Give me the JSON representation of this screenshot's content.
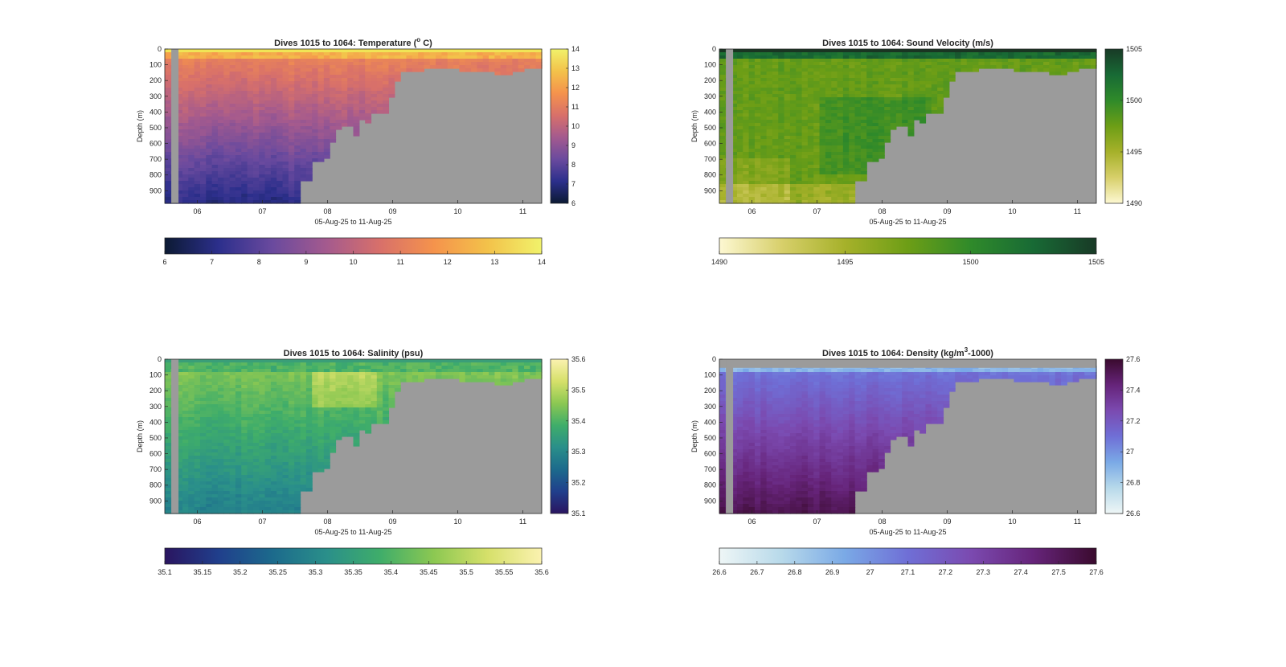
{
  "figure": {
    "panels": [
      {
        "id": "temperature",
        "title": "Dives 1015 to 1064: Temperature (",
        "title_sup": "o",
        "title_tail": " C)",
        "ylabel": "Depth (m)",
        "xlabel": "05-Aug-25 to 11-Aug-25",
        "colormap": [
          "#0c1a33",
          "#2c2f8c",
          "#6a4a9e",
          "#a45a8e",
          "#d8706a",
          "#f5934c",
          "#f3c24a",
          "#f1f26b"
        ],
        "surface_color": "#f0e456",
        "cbar_ticks": [
          "6",
          "7",
          "8",
          "9",
          "10",
          "11",
          "12",
          "13",
          "14"
        ],
        "cbar_v_ticks": [
          "14",
          "13",
          "12",
          "11",
          "10",
          "9",
          "8",
          "7",
          "6"
        ]
      },
      {
        "id": "sound_velocity",
        "title": "Dives 1015 to 1064: Sound Velocity (m/s)",
        "title_sup": "",
        "title_tail": "",
        "ylabel": "Depth (m)",
        "xlabel": "05-Aug-25 to 11-Aug-25",
        "colormap": [
          "#fdf8d2",
          "#d7cf6a",
          "#a6b12a",
          "#6d9e16",
          "#2f8a2a",
          "#186a35",
          "#183a26"
        ],
        "surface_color": "#1a3522",
        "cbar_ticks": [
          "1490",
          "1495",
          "1500",
          "1505"
        ],
        "cbar_v_ticks": [
          "1505",
          "1500",
          "1495",
          "1490"
        ]
      },
      {
        "id": "salinity",
        "title": "Dives 1015 to 1064: Salinity (psu)",
        "title_sup": "",
        "title_tail": "",
        "ylabel": "Depth (m)",
        "xlabel": "05-Aug-25 to 11-Aug-25",
        "colormap": [
          "#2a1560",
          "#203f8c",
          "#1c6a8c",
          "#2a8f8a",
          "#3fad6a",
          "#8cc852",
          "#d6e06a",
          "#fbf2b0"
        ],
        "surface_color": "#3a9e78",
        "cbar_ticks": [
          "35.1",
          "35.15",
          "35.2",
          "35.25",
          "35.3",
          "35.35",
          "35.4",
          "35.45",
          "35.5",
          "35.55",
          "35.6"
        ],
        "cbar_v_ticks": [
          "35.6",
          "35.5",
          "35.4",
          "35.3",
          "35.2",
          "35.1"
        ]
      },
      {
        "id": "density",
        "title": "Dives 1015 to 1064: Density (kg/m",
        "title_sup": "3",
        "title_tail": "-1000)",
        "ylabel": "Depth (m)",
        "xlabel": "05-Aug-25 to 11-Aug-25",
        "colormap": [
          "#eef6f6",
          "#b7d9ea",
          "#7aa9e6",
          "#6f6fd6",
          "#7b4ab0",
          "#66247a",
          "#3a0a2e"
        ],
        "surface_color": "#8fbff0",
        "cbar_ticks": [
          "26.6",
          "26.7",
          "26.8",
          "26.9",
          "27",
          "27.1",
          "27.2",
          "27.3",
          "27.4",
          "27.5",
          "27.6"
        ],
        "cbar_v_ticks": [
          "27.6",
          "27.4",
          "27.2",
          "27",
          "26.8",
          "26.6"
        ]
      }
    ]
  },
  "chart_data": [
    {
      "type": "heatmap",
      "title": "Dives 1015 to 1064: Temperature (o C)",
      "xlabel": "05-Aug-25 to 11-Aug-25",
      "ylabel": "Depth (m)",
      "x_ticks": [
        "06",
        "07",
        "08",
        "09",
        "10",
        "11"
      ],
      "y_ticks": [
        "0",
        "100",
        "200",
        "300",
        "400",
        "500",
        "600",
        "700",
        "800",
        "900"
      ],
      "xlim": [
        "2025-08-05T12:00",
        "2025-08-11T07:00"
      ],
      "ylim": [
        0,
        980
      ],
      "y_reversed": true,
      "clim": [
        6,
        14
      ],
      "depth_profile": [
        {
          "x": 6.5,
          "depth_top": 0,
          "value": 13.5
        },
        {
          "x": 6.5,
          "depth_top": 100,
          "value": 11.2
        },
        {
          "x": 6.5,
          "depth_top": 500,
          "value": 9.5
        },
        {
          "x": 6.5,
          "depth_top": 900,
          "value": 7.5
        },
        {
          "x": 9.0,
          "depth_top": 100,
          "value": 11.0
        },
        {
          "x": 10.5,
          "depth_top": 100,
          "value": 11.5
        }
      ]
    },
    {
      "type": "heatmap",
      "title": "Dives 1015 to 1064: Sound Velocity (m/s)",
      "xlabel": "05-Aug-25 to 11-Aug-25",
      "ylabel": "Depth (m)",
      "x_ticks": [
        "06",
        "07",
        "08",
        "09",
        "10",
        "11"
      ],
      "y_ticks": [
        "0",
        "100",
        "200",
        "300",
        "400",
        "500",
        "600",
        "700",
        "800",
        "900"
      ],
      "xlim": [
        "2025-08-05T12:00",
        "2025-08-11T07:00"
      ],
      "ylim": [
        0,
        980
      ],
      "y_reversed": true,
      "clim": [
        1490,
        1505
      ],
      "depth_profile": [
        {
          "x": 6.5,
          "depth_top": 0,
          "value": 1504
        },
        {
          "x": 6.5,
          "depth_top": 100,
          "value": 1497
        },
        {
          "x": 6.5,
          "depth_top": 500,
          "value": 1499
        },
        {
          "x": 6.5,
          "depth_top": 900,
          "value": 1495
        }
      ]
    },
    {
      "type": "heatmap",
      "title": "Dives 1015 to 1064: Salinity (psu)",
      "xlabel": "05-Aug-25 to 11-Aug-25",
      "ylabel": "Depth (m)",
      "x_ticks": [
        "06",
        "07",
        "08",
        "09",
        "10",
        "11"
      ],
      "y_ticks": [
        "0",
        "100",
        "200",
        "300",
        "400",
        "500",
        "600",
        "700",
        "800",
        "900"
      ],
      "xlim": [
        "2025-08-05T12:00",
        "2025-08-11T07:00"
      ],
      "ylim": [
        0,
        980
      ],
      "y_reversed": true,
      "clim": [
        35.1,
        35.6
      ],
      "depth_profile": [
        {
          "x": 6.5,
          "depth_top": 0,
          "value": 35.42
        },
        {
          "x": 6.5,
          "depth_top": 200,
          "value": 35.43
        },
        {
          "x": 6.5,
          "depth_top": 600,
          "value": 35.32
        },
        {
          "x": 6.5,
          "depth_top": 900,
          "value": 35.25
        },
        {
          "x": 8.0,
          "depth_top": 150,
          "value": 35.5
        }
      ]
    },
    {
      "type": "heatmap",
      "title": "Dives 1015 to 1064: Density (kg/m3-1000)",
      "xlabel": "05-Aug-25 to 11-Aug-25",
      "ylabel": "Depth (m)",
      "x_ticks": [
        "06",
        "07",
        "08",
        "09",
        "10",
        "11"
      ],
      "y_ticks": [
        "0",
        "100",
        "200",
        "300",
        "400",
        "500",
        "600",
        "700",
        "800",
        "900"
      ],
      "xlim": [
        "2025-08-05T12:00",
        "2025-08-11T07:00"
      ],
      "ylim": [
        0,
        980
      ],
      "y_reversed": true,
      "clim": [
        26.6,
        27.6
      ],
      "depth_profile": [
        {
          "x": 6.5,
          "depth_top": 80,
          "value": 26.85
        },
        {
          "x": 6.5,
          "depth_top": 300,
          "value": 27.15
        },
        {
          "x": 6.5,
          "depth_top": 700,
          "value": 27.35
        },
        {
          "x": 6.5,
          "depth_top": 900,
          "value": 27.5
        }
      ]
    }
  ]
}
